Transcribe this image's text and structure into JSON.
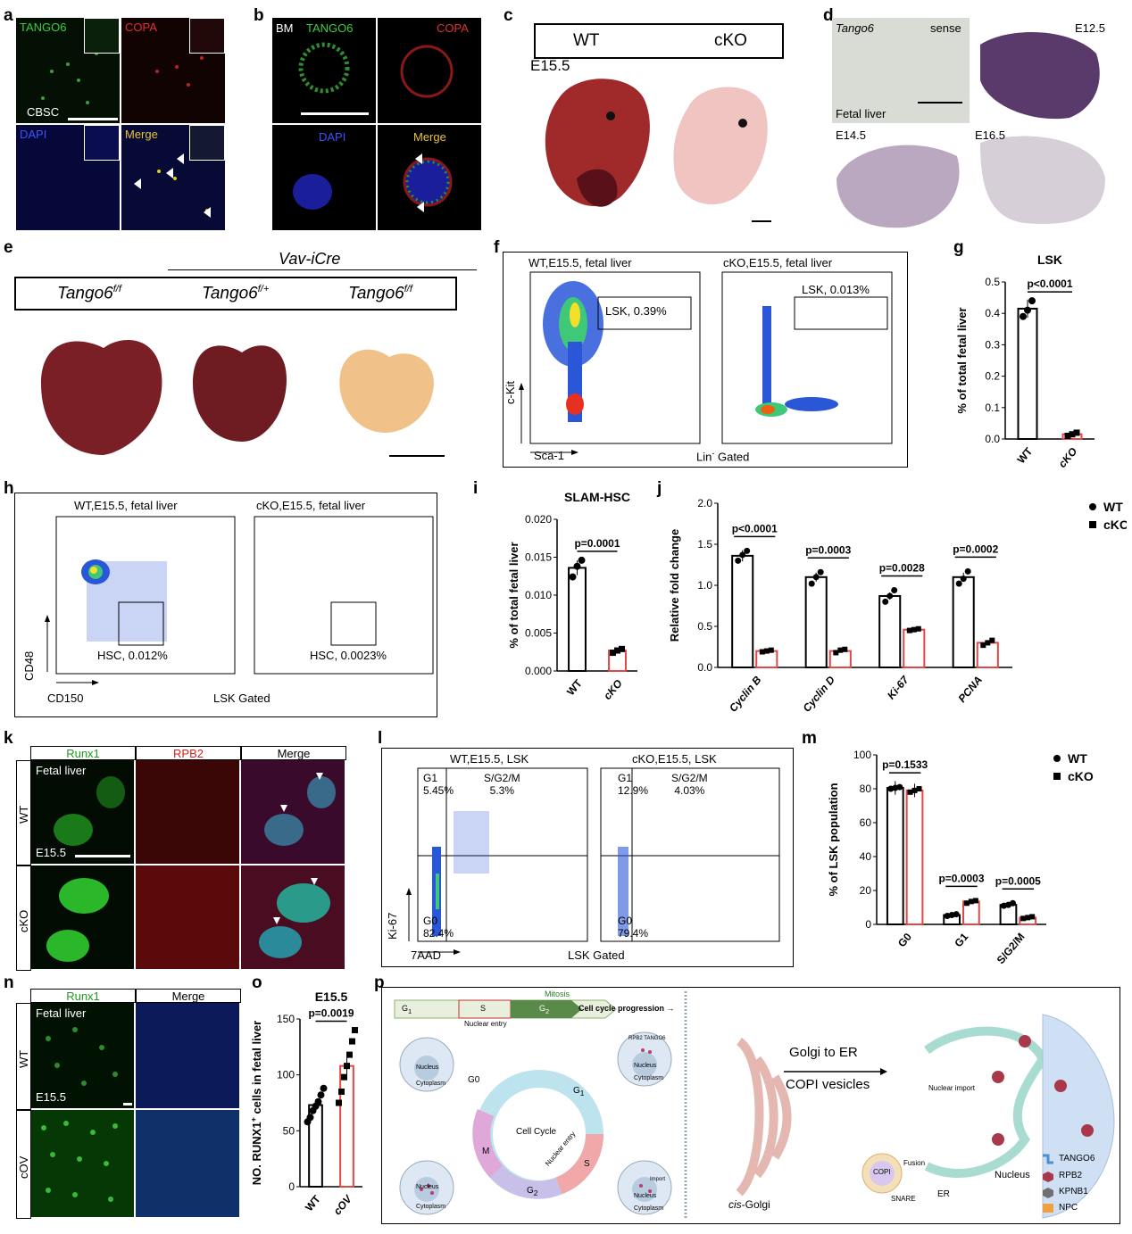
{
  "panels": {
    "a": {
      "label": "a",
      "tiles": [
        "TANGO6",
        "COPA",
        "DAPI",
        "Merge"
      ],
      "cell": "CBSC"
    },
    "b": {
      "label": "b",
      "tiles": [
        "BM",
        "TANGO6",
        "COPA",
        "DAPI",
        "Merge"
      ]
    },
    "c": {
      "label": "c",
      "wt": "WT",
      "cko": "cKO",
      "stage": "E15.5"
    },
    "d": {
      "label": "d",
      "gene": "Tango6",
      "sense": "sense",
      "tissue": "Fetal liver",
      "stages": [
        "E12.5",
        "E14.5",
        "E16.5"
      ]
    },
    "e": {
      "label": "e",
      "driver": "Vav-iCre",
      "gen1": "Tango6",
      "sup1": "f/f",
      "gen2": "Tango6",
      "sup2": "f/+",
      "gen3": "Tango6",
      "sup3": "f/f"
    },
    "f": {
      "label": "f",
      "wt_title": "WT,E15.5, fetal liver",
      "cko_title": "cKO,E15.5, fetal liver",
      "wt_gate": "LSK, 0.39%",
      "cko_gate": "LSK, 0.013%",
      "yaxis": "c-Kit",
      "xaxis": "Sca-1",
      "gated": "Lin",
      "gated_sup": "-",
      "gated_rest": " Gated"
    },
    "h": {
      "label": "h",
      "wt_title": "WT,E15.5, fetal liver",
      "cko_title": "cKO,E15.5, fetal liver",
      "wt_gate": "HSC, 0.012%",
      "cko_gate": "HSC, 0.0023%",
      "yaxis": "CD48",
      "xaxis": "CD150",
      "gated": "LSK Gated"
    },
    "k": {
      "label": "k",
      "cols": [
        "Runx1",
        "RPB2",
        "Merge"
      ],
      "tissue": "Fetal liver",
      "rows": [
        "WT",
        "cKO"
      ],
      "stage": "E15.5"
    },
    "l": {
      "label": "l",
      "wt_title": "WT,E15.5, LSK",
      "cko_title": "cKO,E15.5, LSK",
      "g1": "G1",
      "sg2m": "S/G2/M",
      "g0": "G0",
      "wt_g1": "5.45%",
      "wt_s": "5.3%",
      "wt_g0": "82.4%",
      "cko_g1": "12.9%",
      "cko_s": "4.03%",
      "cko_g0": "79.4%",
      "yaxis": "Ki-67",
      "xaxis": "7AAD",
      "gated": "LSK Gated"
    },
    "n": {
      "label": "n",
      "cols": [
        "Runx1",
        "Merge"
      ],
      "tissue": "Fetal liver",
      "rows": [
        "WT",
        "cOV"
      ],
      "stage": "E15.5"
    },
    "p": {
      "label": "p",
      "g1": "G",
      "g1s": "1",
      "s": "S",
      "g2": "G",
      "g2s": "2",
      "mitosis": "Mitosis",
      "progress": "Cell cycle progression →",
      "nuclear_entry": "Nuclear entry",
      "cycle": "Cell Cycle",
      "g0": "G0",
      "m": "M",
      "cyc_s": "S",
      "cyc_g1": "G",
      "cyc_g1s": "1",
      "cyc_g2": "G",
      "cyc_g2s": "2",
      "cyc_entry": "Nuclear entry",
      "nucleus": "Nucleus",
      "cytoplasm": "Cytoplasm",
      "rpb2_tango6": "RPB2 TANGO6",
      "import_small": "Import",
      "golgi_er": "Golgi to ER",
      "copi_vesicles": "COPI vesicles",
      "cis": "cis",
      "golgi_rest": "-Golgi",
      "copi": "COPI",
      "fusion": "Fusion",
      "snare": "SNARE",
      "er": "ER",
      "nuclear_import": "Nuclear import",
      "big_nucleus": "Nucleus",
      "legend": [
        "TANGO6",
        "RPB2",
        "KPNB1",
        "NPC"
      ]
    }
  },
  "chart_data": [
    {
      "id": "g",
      "type": "bar",
      "title": "LSK",
      "categories": [
        "WT",
        "cKO"
      ],
      "values": [
        0.415,
        0.015
      ],
      "points": [
        [
          0.39,
          0.41,
          0.44
        ],
        [
          0.01,
          0.015,
          0.02
        ]
      ],
      "ylabel": "% of total fetal liver",
      "ylim": [
        0,
        0.5
      ],
      "yticks": [
        "0.0",
        "0.1",
        "0.2",
        "0.3",
        "0.4",
        "0.5"
      ],
      "pvalue": "p<0.0001"
    },
    {
      "id": "i",
      "type": "bar",
      "title": "SLAM-HSC",
      "categories": [
        "WT",
        "cKO"
      ],
      "values": [
        0.0136,
        0.0027
      ],
      "points": [
        [
          0.0124,
          0.0138,
          0.0146
        ],
        [
          0.0024,
          0.0027,
          0.0029
        ]
      ],
      "ylabel": "% of total fetal liver",
      "ylim": [
        0,
        0.02
      ],
      "yticks": [
        "0.000",
        "0.005",
        "0.010",
        "0.015",
        "0.020"
      ],
      "pvalue": "p=0.0001"
    },
    {
      "id": "j",
      "type": "bar",
      "categories": [
        "Cyclin B",
        "Cyclin D",
        "Ki-67",
        "PCNA"
      ],
      "series": [
        {
          "name": "WT",
          "values": [
            1.36,
            1.1,
            0.87,
            1.1
          ],
          "points": [
            [
              1.3,
              1.37,
              1.42
            ],
            [
              1.02,
              1.1,
              1.16
            ],
            [
              0.8,
              0.87,
              0.94
            ],
            [
              1.02,
              1.08,
              1.17
            ]
          ]
        },
        {
          "name": "cKO",
          "values": [
            0.2,
            0.2,
            0.46,
            0.3
          ],
          "points": [
            [
              0.19,
              0.2,
              0.21
            ],
            [
              0.18,
              0.21,
              0.22
            ],
            [
              0.45,
              0.46,
              0.47
            ],
            [
              0.27,
              0.3,
              0.33
            ]
          ]
        }
      ],
      "ylabel": "Relative fold change",
      "ylim": [
        0,
        2.0
      ],
      "yticks": [
        "0.0",
        "0.5",
        "1.0",
        "1.5",
        "2.0"
      ],
      "pvalues": [
        "p<0.0001",
        "p=0.0003",
        "p=0.0028",
        "p=0.0002"
      ],
      "legend": "top-right"
    },
    {
      "id": "m",
      "type": "bar",
      "categories": [
        "G0",
        "G1",
        "S/G2/M"
      ],
      "series": [
        {
          "name": "WT",
          "values": [
            80.5,
            5.5,
            11.5
          ],
          "points": [
            [
              80,
              80.5,
              81
            ],
            [
              5,
              5.5,
              6
            ],
            [
              11,
              11.5,
              12.5
            ]
          ]
        },
        {
          "name": "cKO",
          "values": [
            79,
            13.5,
            4
          ],
          "points": [
            [
              78,
              79,
              80
            ],
            [
              12.5,
              13.5,
              14
            ],
            [
              3.5,
              4,
              4.5
            ]
          ]
        }
      ],
      "ylabel": "% of LSK population",
      "ylim": [
        0,
        100
      ],
      "yticks": [
        "0",
        "20",
        "40",
        "60",
        "80",
        "100"
      ],
      "pvalues": [
        "p=0.1533",
        "p=0.0003",
        "p=0.0005"
      ],
      "legend": "top-right"
    },
    {
      "id": "o",
      "type": "bar",
      "title": "E15.5",
      "categories": [
        "WT",
        "cOV"
      ],
      "values": [
        73,
        108
      ],
      "points": [
        [
          58,
          62,
          68,
          72,
          76,
          82,
          88
        ],
        [
          75,
          85,
          98,
          108,
          118,
          130,
          140
        ]
      ],
      "ylabel": "NO. RUNX1",
      "ylabel_sup": "+",
      "ylabel_rest": " cells in fetal liver",
      "ylim": [
        0,
        150
      ],
      "yticks": [
        "0",
        "50",
        "100",
        "150"
      ],
      "pvalue": "p=0.0019"
    }
  ]
}
